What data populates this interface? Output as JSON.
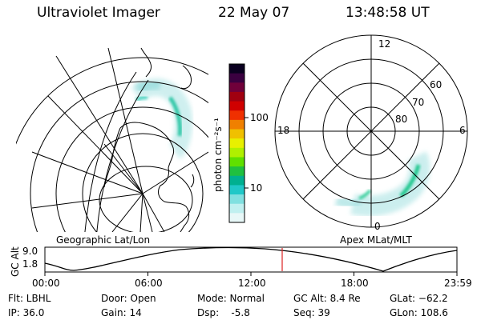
{
  "header": {
    "instrument": "Ultraviolet Imager",
    "date": "22 May 07",
    "time": "13:48:58 UT"
  },
  "left_panel": {
    "label": "Geographic Lat/Lon"
  },
  "right_panel": {
    "label": "Apex MLat/MLT",
    "mlt_labels": {
      "top": "12",
      "left": "18",
      "right": "6",
      "bottom": "0"
    },
    "lat_labels": [
      "60",
      "70",
      "80"
    ]
  },
  "colorbar": {
    "unit": "photon cm⁻²s⁻¹",
    "ticks": [
      "100",
      "10"
    ],
    "colors": [
      "#0a0020",
      "#3a0040",
      "#70003a",
      "#a00010",
      "#d00000",
      "#f03000",
      "#f08000",
      "#f0c000",
      "#e8f000",
      "#b0f000",
      "#60e000",
      "#20c040",
      "#00b090",
      "#20c8c8",
      "#80e0e0",
      "#c0f0f0",
      "#e8f8f8"
    ]
  },
  "altitude_plot": {
    "ylabel": "GC Alt",
    "yticks": [
      "9.0",
      "1.8"
    ],
    "xticks": [
      "00:00",
      "06:00",
      "12:00",
      "18:00",
      "23:59"
    ],
    "current_time_hours": 13.82,
    "marker_color": "#dd2222"
  },
  "status": {
    "filter": "Flt: LBHL",
    "ip": "IP: 36.0",
    "door": "Door: Open",
    "gain": "Gain: 14",
    "mode": "Mode: Normal",
    "dsp": "Dsp:    -5.8",
    "gc_alt": "GC Alt: 8.4 Re",
    "seq": "Seq: 39",
    "glat": "GLat: −62.2",
    "glon": "GLon: 108.6"
  }
}
